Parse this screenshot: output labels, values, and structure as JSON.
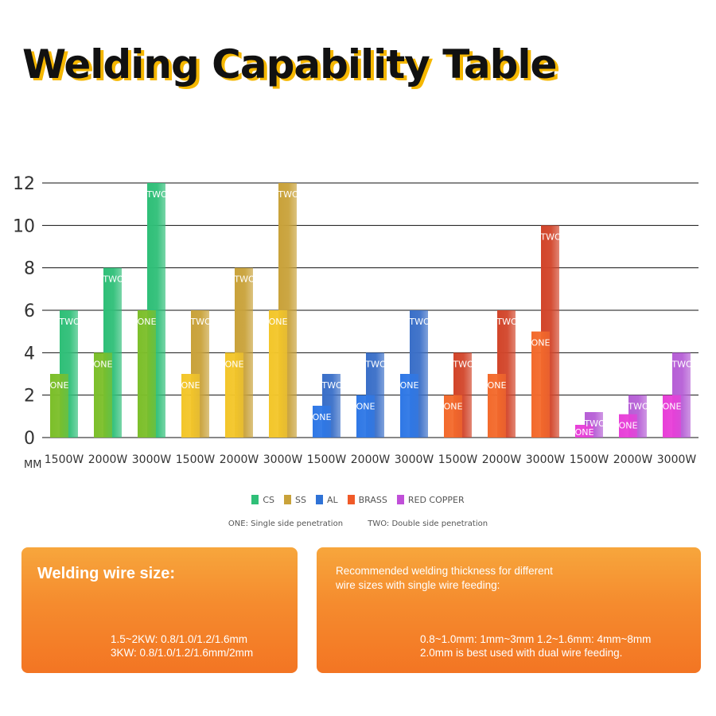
{
  "title": "Welding Capability Table",
  "chart_data": {
    "type": "bar",
    "ylabel": "MM",
    "ylim": [
      0,
      12
    ],
    "yticks": [
      0,
      2,
      4,
      6,
      8,
      10,
      12
    ],
    "grid": true,
    "categories": [
      "1500W",
      "2000W",
      "3000W",
      "1500W",
      "2000W",
      "3000W",
      "1500W",
      "2000W",
      "3000W",
      "1500W",
      "2000W",
      "3000W",
      "1500W",
      "2000W",
      "3000W"
    ],
    "groups": [
      "CS",
      "CS",
      "CS",
      "SS",
      "SS",
      "SS",
      "AL",
      "AL",
      "AL",
      "BRASS",
      "BRASS",
      "BRASS",
      "RED COPPER",
      "RED COPPER",
      "RED COPPER"
    ],
    "series": [
      {
        "name": "ONE",
        "values": [
          3,
          4,
          6,
          3,
          4,
          6,
          1.5,
          2,
          3,
          2,
          3,
          5,
          0.6,
          1.1,
          2
        ]
      },
      {
        "name": "TWO",
        "values": [
          6,
          8,
          12,
          6,
          8,
          12,
          3,
          4,
          6,
          4,
          6,
          10,
          1.2,
          2,
          4
        ]
      }
    ]
  },
  "legend": [
    {
      "label": "CS",
      "color": "#2fbf78"
    },
    {
      "label": "SS",
      "color": "#c9a23a"
    },
    {
      "label": "AL",
      "color": "#2f72d6"
    },
    {
      "label": "BRASS",
      "color": "#f05a28"
    },
    {
      "label": "RED COPPER",
      "color": "#c04fd8"
    }
  ],
  "notes": {
    "one": "ONE: Single side penetration",
    "two": "TWO: Double side penetration"
  },
  "colors": {
    "CS_one": "#7cbf2a",
    "CS_two": "#2fbf78",
    "SS_one": "#f3c62a",
    "SS_two": "#c9a23a",
    "AL_one": "#2f78e6",
    "AL_two": "#3a6fc8",
    "BRASS_one": "#f36a2c",
    "BRASS_two": "#d2452a",
    "RED COPPER_one": "#e83fd8",
    "RED COPPER_two": "#b65fd6"
  },
  "cards": {
    "wire": {
      "title": "Welding wire size:",
      "line1": "1.5~2KW: 0.8/1.0/1.2/1.6mm",
      "line2": "3KW: 0.8/1.0/1.2/1.6mm/2mm"
    },
    "recommend": {
      "title": "Recommended welding thickness for different wire sizes with single wire feeding:",
      "line1": "0.8~1.0mm: 1mm~3mm  1.2~1.6mm: 4mm~8mm",
      "line2": "2.0mm is best used with dual wire feeding."
    }
  }
}
